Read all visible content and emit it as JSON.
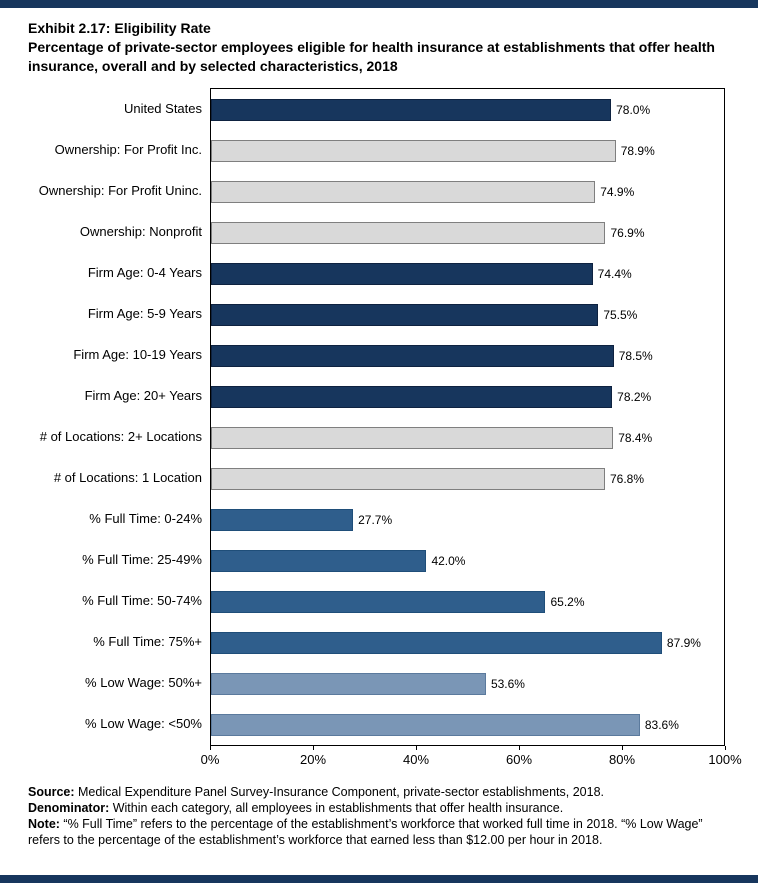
{
  "title": {
    "line1": "Exhibit 2.17: Eligibility Rate",
    "line2": "Percentage of private-sector employees eligible for health insurance at establishments that offer health insurance, overall and by selected characteristics, 2018"
  },
  "chart_data": {
    "type": "bar",
    "orientation": "horizontal",
    "title": "Exhibit 2.17: Eligibility Rate",
    "xlabel": "",
    "ylabel": "",
    "xlim": [
      0,
      100
    ],
    "grid": false,
    "legend": false,
    "categories": [
      "United States",
      "Ownership: For Profit Inc.",
      "Ownership: For Profit Uninc.",
      "Ownership: Nonprofit",
      "Firm Age: 0-4 Years",
      "Firm Age: 5-9 Years",
      "Firm Age: 10-19 Years",
      "Firm Age: 20+ Years",
      "# of Locations: 2+ Locations",
      "# of Locations: 1 Location",
      "% Full Time: 0-24%",
      "% Full Time: 25-49%",
      "% Full Time: 50-74%",
      "% Full Time: 75%+",
      "% Low Wage: 50%+",
      "% Low Wage: <50%"
    ],
    "values": [
      78.0,
      78.9,
      74.9,
      76.9,
      74.4,
      75.5,
      78.5,
      78.2,
      78.4,
      76.8,
      27.7,
      42.0,
      65.2,
      87.9,
      53.6,
      83.6
    ],
    "value_labels": [
      "78.0%",
      "78.9%",
      "74.9%",
      "76.9%",
      "74.4%",
      "75.5%",
      "78.5%",
      "78.2%",
      "78.4%",
      "76.8%",
      "27.7%",
      "42.0%",
      "65.2%",
      "87.9%",
      "53.6%",
      "83.6%"
    ],
    "bar_colors": [
      "#17365D",
      "#D9D9D9",
      "#D9D9D9",
      "#D9D9D9",
      "#17365D",
      "#17365D",
      "#17365D",
      "#17365D",
      "#D9D9D9",
      "#D9D9D9",
      "#2F5E8C",
      "#2F5E8C",
      "#2F5E8C",
      "#2F5E8C",
      "#7A96B6",
      "#7A96B6"
    ],
    "bar_border_colors": [
      "#0E2240",
      "#7F7F7F",
      "#7F7F7F",
      "#7F7F7F",
      "#0E2240",
      "#0E2240",
      "#0E2240",
      "#0E2240",
      "#7F7F7F",
      "#7F7F7F",
      "#1F4E79",
      "#1F4E79",
      "#1F4E79",
      "#1F4E79",
      "#5B7A9D",
      "#5B7A9D"
    ],
    "x_ticks": [
      "0%",
      "20%",
      "40%",
      "60%",
      "80%",
      "100%"
    ]
  },
  "footer": {
    "lines": [
      {
        "label": "Source:",
        "text": " Medical Expenditure Panel Survey-Insurance Component, private-sector establishments, 2018."
      },
      {
        "label": "Denominator:",
        "text": " Within each category, all employees in establishments that offer health insurance."
      },
      {
        "label": "Note:",
        "text": " “% Full Time” refers to the percentage of the establishment’s workforce that worked full time in 2018. “% Low Wage” refers to the percentage of the establishment’s workforce that earned less than $12.00 per hour in 2018."
      }
    ]
  },
  "colors": {
    "accent_navy": "#17365D",
    "bar_gray": "#D9D9D9",
    "bar_medium_blue": "#2F5E8C",
    "bar_steel_blue": "#7A96B6"
  }
}
